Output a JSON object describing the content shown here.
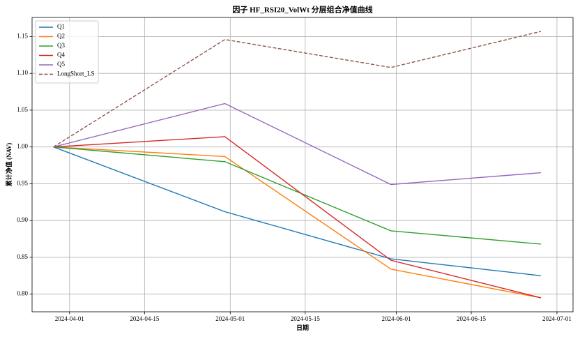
{
  "chart_data": {
    "type": "line",
    "title": "因子 HF_RSI20_VolWt 分层组合净值曲线",
    "x_label": "日期",
    "y_label": "累计净值 (NAV)",
    "x": [
      "2024-03-29",
      "2024-04-30",
      "2024-05-31",
      "2024-06-28"
    ],
    "series": [
      {
        "name": "Q1",
        "color": "#1f77b4",
        "linestyle": "solid",
        "values": [
          1.0,
          0.912,
          0.848,
          0.825
        ]
      },
      {
        "name": "Q2",
        "color": "#ff7f0e",
        "linestyle": "solid",
        "values": [
          1.0,
          0.987,
          0.834,
          0.795
        ]
      },
      {
        "name": "Q3",
        "color": "#2ca02c",
        "linestyle": "solid",
        "values": [
          1.0,
          0.98,
          0.886,
          0.868
        ]
      },
      {
        "name": "Q4",
        "color": "#d62728",
        "linestyle": "solid",
        "values": [
          1.0,
          1.014,
          0.846,
          0.795
        ]
      },
      {
        "name": "Q5",
        "color": "#9467bd",
        "linestyle": "solid",
        "values": [
          1.0,
          1.059,
          0.949,
          0.965
        ]
      },
      {
        "name": "LongShort_LS",
        "color": "#8c564b",
        "linestyle": "dashed",
        "values": [
          1.0,
          1.146,
          1.108,
          1.157
        ]
      }
    ],
    "xlim": [
      "2024-03-25",
      "2024-07-04"
    ],
    "xticks": [
      "2024-04-01",
      "2024-04-15",
      "2024-05-01",
      "2024-05-15",
      "2024-06-01",
      "2024-06-15",
      "2024-07-01"
    ],
    "ylim": [
      0.776,
      1.176
    ],
    "yticks": [
      {
        "value": 0.8,
        "label": "0.80"
      },
      {
        "value": 0.85,
        "label": "0.85"
      },
      {
        "value": 0.9,
        "label": "0.90"
      },
      {
        "value": 0.95,
        "label": "0.95"
      },
      {
        "value": 1.0,
        "label": "1.00"
      },
      {
        "value": 1.05,
        "label": "1.05"
      },
      {
        "value": 1.1,
        "label": "1.10"
      },
      {
        "value": 1.15,
        "label": "1.15"
      }
    ],
    "grid": true,
    "legend": "upper-left"
  }
}
